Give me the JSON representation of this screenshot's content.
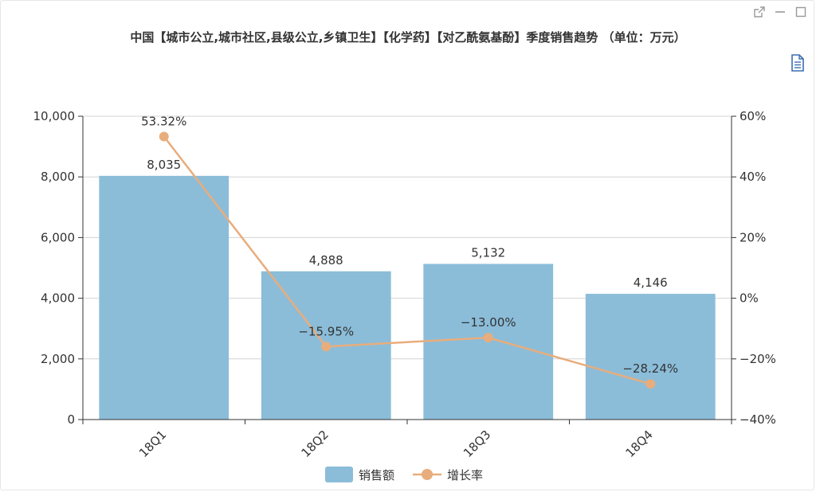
{
  "toolbar": {
    "icons": [
      "external-link-icon",
      "minimize-icon",
      "maximize-icon",
      "document-icon"
    ]
  },
  "colors": {
    "bar": "#8bbdd9",
    "line": "#e8ad7c",
    "grid": "#d4d4d4",
    "axis": "#333333"
  },
  "chart_data": {
    "type": "bar",
    "title": "中国【城市公立,城市社区,县级公立,乡镇卫生】【化学药】【对乙酰氨基酚】季度销售趋势 （单位：万元）",
    "categories": [
      "18Q1",
      "18Q2",
      "18Q3",
      "18Q4"
    ],
    "series": [
      {
        "name": "销售额",
        "type": "bar",
        "axis": "left",
        "values": [
          8035,
          4888,
          5132,
          4146
        ],
        "labels": [
          "8,035",
          "4,888",
          "5,132",
          "4,146"
        ]
      },
      {
        "name": "增长率",
        "type": "line",
        "axis": "right",
        "values": [
          53.32,
          -15.95,
          -13.0,
          -28.24
        ],
        "labels": [
          "53.32%",
          "−15.95%",
          "−13.00%",
          "−28.24%"
        ]
      }
    ],
    "left_axis": {
      "ylim": [
        0,
        10000
      ],
      "ticks": [
        0,
        2000,
        4000,
        6000,
        8000,
        10000
      ],
      "tick_labels": [
        "0",
        "2,000",
        "4,000",
        "6,000",
        "8,000",
        "10,000"
      ]
    },
    "right_axis": {
      "ylim": [
        -40,
        60
      ],
      "ticks": [
        -40,
        -20,
        0,
        20,
        40,
        60
      ],
      "tick_labels": [
        "−40%",
        "−20%",
        "0%",
        "20%",
        "40%",
        "60%"
      ]
    },
    "grid": true,
    "legend_position": "bottom-center"
  }
}
